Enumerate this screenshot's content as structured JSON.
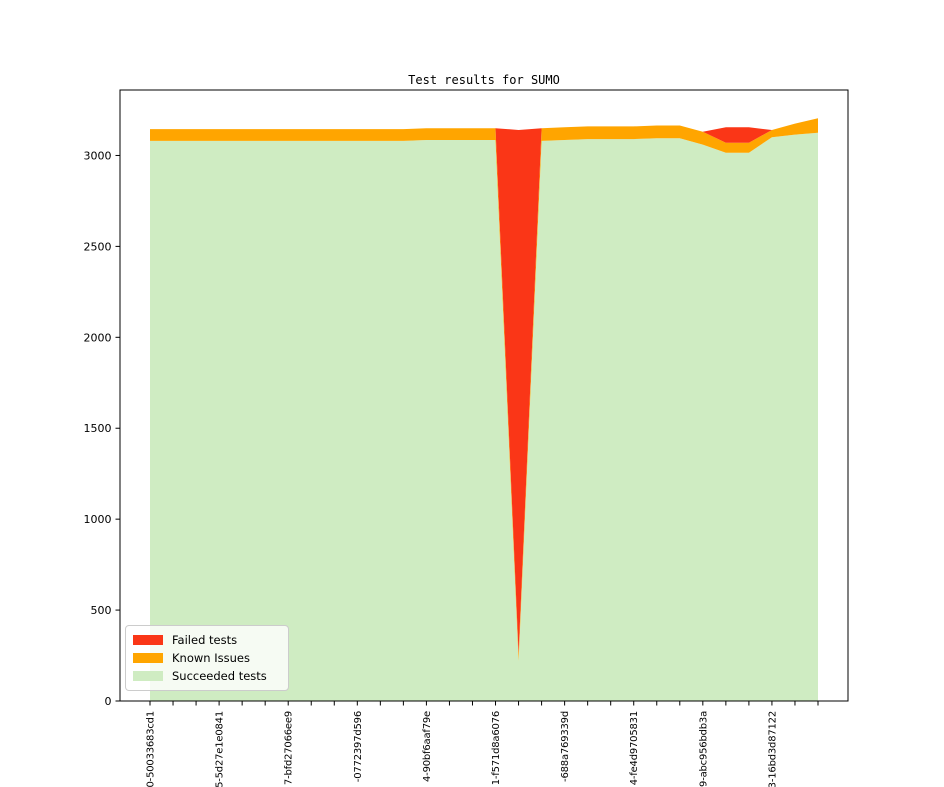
{
  "chart_data": {
    "type": "area",
    "stacked": true,
    "title": "Test results for SUMO",
    "xlabel": "",
    "ylabel": "",
    "grid": false,
    "legend_position": "lower left",
    "n_points": 30,
    "ylim": [
      0,
      3360
    ],
    "yticks": [
      0,
      500,
      1000,
      1500,
      2000,
      2500,
      3000
    ],
    "x_tick_label_positions": [
      0,
      3,
      6,
      9,
      12,
      15,
      18,
      21,
      24,
      27
    ],
    "x_tick_labels": [
      "0-50033683cd1",
      "5-5d27e1e0841",
      "7-bfd27066ee9",
      "-0772397d596",
      "4-90bf6aaf79e",
      "1-f571d8a6076",
      "-688a769339d",
      "4-fe4d9705831",
      "9-abc956bdb3a",
      "3-16bd3d87122"
    ],
    "series": [
      {
        "name": "Failed tests",
        "color": "#fa3617",
        "values": [
          0,
          0,
          0,
          0,
          0,
          0,
          0,
          0,
          0,
          0,
          0,
          0,
          0,
          0,
          0,
          0,
          2880,
          0,
          0,
          0,
          0,
          0,
          0,
          0,
          0,
          85,
          85,
          0,
          0,
          0
        ]
      },
      {
        "name": "Known Issues",
        "color": "#ffa500",
        "values": [
          65,
          65,
          65,
          65,
          65,
          65,
          65,
          65,
          65,
          65,
          65,
          65,
          65,
          65,
          65,
          65,
          40,
          70,
          70,
          70,
          70,
          70,
          70,
          70,
          70,
          55,
          55,
          40,
          60,
          80
        ]
      },
      {
        "name": "Succeeded tests",
        "color": "#cfecc2",
        "values": [
          3080,
          3080,
          3080,
          3080,
          3080,
          3080,
          3080,
          3080,
          3080,
          3080,
          3080,
          3080,
          3085,
          3085,
          3085,
          3085,
          220,
          3080,
          3085,
          3090,
          3090,
          3090,
          3095,
          3095,
          3060,
          3015,
          3015,
          3100,
          3115,
          3125
        ]
      }
    ],
    "axis_color": "#000000",
    "tick_label_color": "#000000"
  }
}
